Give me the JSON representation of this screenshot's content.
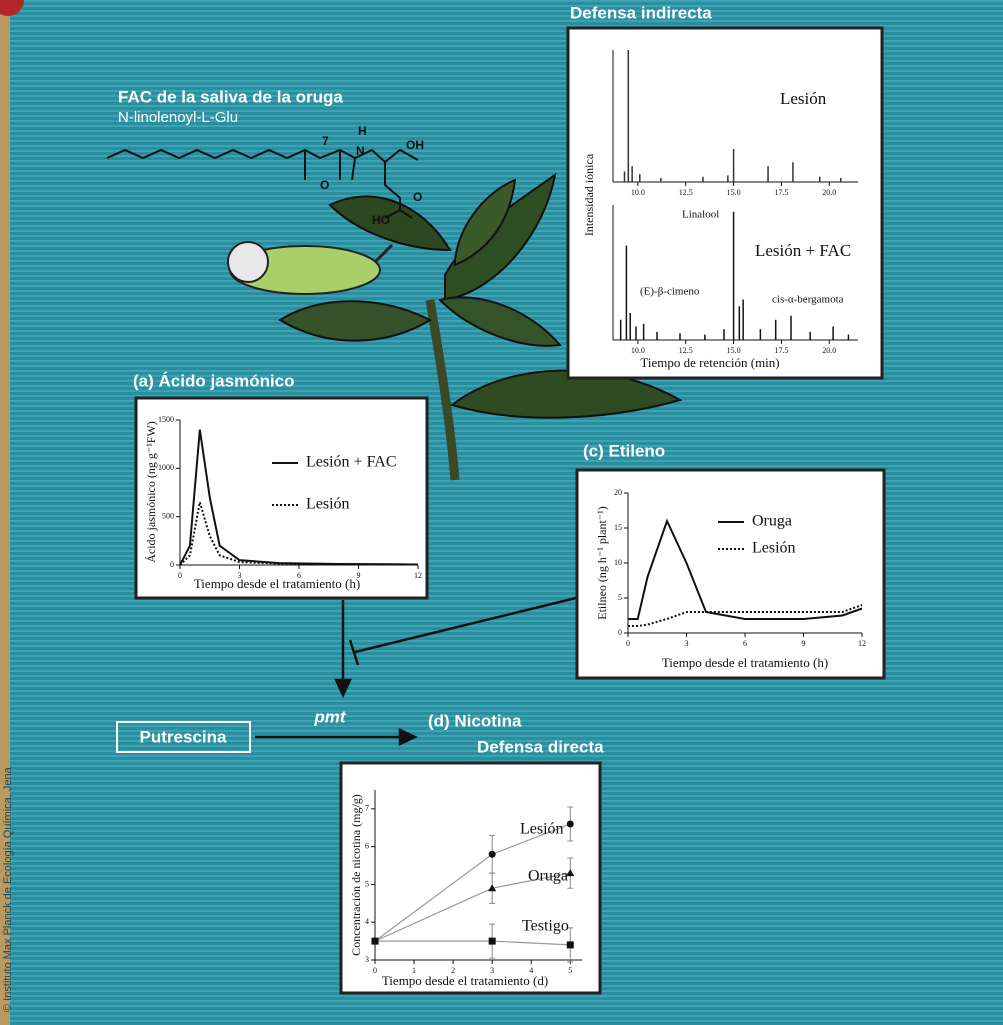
{
  "fac_title": "FAC de la saliva de la oruga",
  "fac_subtitle": "N-linolenoyl-L-Glu",
  "molecule_labels": [
    "7",
    "O",
    "H",
    "N",
    "OH",
    "HO",
    "O"
  ],
  "pathway": {
    "substrate": "Putrescina",
    "enzyme": "pmt"
  },
  "credit": "© Instituto Max Planck de Ecología Química, Jena",
  "chart_data": [
    {
      "type": "chromatogram",
      "title": "Defensa indirecta",
      "ylabel": "Intensidad iónica",
      "xlabel": "Tiempo de retención (min)",
      "xlim": [
        8.7,
        21.5
      ],
      "ylim": [
        0,
        100
      ],
      "xticks": [
        {
          "value": 10,
          "label": "10.0"
        },
        12.5,
        {
          "value": 15,
          "label": "15.0"
        },
        17.5,
        {
          "value": 20,
          "label": "20.0"
        }
      ],
      "series": [
        {
          "name": "Lesión",
          "color": "#333333",
          "x": [
            9.3,
            9.5,
            9.7,
            10.1,
            11.2,
            13.4,
            14.7,
            15.0,
            16.8,
            18.1,
            19.5,
            20.6
          ],
          "values": [
            8,
            100,
            12,
            6,
            3,
            4,
            5,
            25,
            12,
            15,
            4,
            3
          ]
        },
        {
          "name": "Lesión + FAC",
          "color": "#111111",
          "x": [
            9.1,
            9.4,
            9.6,
            9.9,
            10.3,
            11.0,
            12.2,
            13.5,
            14.5,
            15.0,
            15.3,
            15.5,
            16.4,
            17.2,
            18.0,
            19.0,
            20.2,
            21.0
          ],
          "values": [
            15,
            70,
            20,
            10,
            12,
            6,
            5,
            4,
            8,
            95,
            25,
            30,
            8,
            15,
            18,
            6,
            10,
            4
          ]
        }
      ],
      "annotations": [
        "Linalool",
        "(E)-β-cimeno",
        "cis-α-bergamota"
      ]
    },
    {
      "type": "line",
      "title": "(a) Ácido jasmónico",
      "ylabel": "Ácido jasmónico (ng g⁻¹FW)",
      "xlabel": "Tiempo desde el tratamiento (h)",
      "x": [
        0,
        0.5,
        1,
        1.5,
        2,
        3,
        5,
        8,
        12
      ],
      "xlim": [
        0,
        12
      ],
      "ylim": [
        0,
        1500
      ],
      "xticks": [
        0,
        3,
        6,
        9,
        12
      ],
      "yticks": [
        0,
        500,
        1000,
        1500
      ],
      "series": [
        {
          "name": "Lesión + FAC",
          "color": "#111111",
          "line_style": "solid",
          "values": [
            0,
            200,
            1400,
            700,
            200,
            50,
            20,
            10,
            5
          ]
        },
        {
          "name": "Lesión",
          "color": "#111111",
          "line_style": "dotted",
          "values": [
            0,
            100,
            650,
            300,
            100,
            30,
            15,
            10,
            5
          ]
        }
      ]
    },
    {
      "type": "line",
      "title": "(c) Etileno",
      "ylabel": "Etilneo (ng h⁻¹ plant⁻¹)",
      "xlabel": "Tiempo desde el tratamiento (h)",
      "x": [
        0,
        0.5,
        1,
        2,
        3,
        4,
        6,
        9,
        11,
        12
      ],
      "xlim": [
        0,
        12
      ],
      "ylim": [
        0,
        20
      ],
      "xticks": [
        0,
        3,
        6,
        9,
        12
      ],
      "yticks": [
        0,
        5,
        10,
        15,
        20
      ],
      "series": [
        {
          "name": "Oruga",
          "color": "#111111",
          "line_style": "solid",
          "values": [
            2,
            2,
            8,
            16,
            10,
            3,
            2,
            2,
            2.5,
            3.5
          ]
        },
        {
          "name": "Lesión",
          "color": "#111111",
          "line_style": "dotted",
          "values": [
            1,
            1,
            1.2,
            2,
            3,
            3,
            3,
            3,
            3,
            4
          ]
        }
      ]
    },
    {
      "type": "errorline",
      "title": "(d) Nicotina",
      "subtitle": "Defensa directa",
      "ylabel": "Concentración de nicotina (mg/g)",
      "xlabel": "Tiempo desde el tratamiento (d)",
      "x": [
        0,
        3,
        5
      ],
      "xlim": [
        0,
        5.3
      ],
      "ylim": [
        3,
        7.5
      ],
      "xticks": [
        0,
        1,
        2,
        3,
        4,
        5
      ],
      "yticks": [
        3,
        4,
        5,
        6,
        7
      ],
      "series": [
        {
          "name": "Lesión",
          "color": "#111111",
          "marker": "circle",
          "values": [
            3.5,
            5.8,
            6.6
          ],
          "errors": [
            0,
            0.5,
            0.45
          ]
        },
        {
          "name": "Oruga",
          "color": "#111111",
          "marker": "triangle",
          "values": [
            3.5,
            4.9,
            5.3
          ],
          "errors": [
            0,
            0.4,
            0.4
          ]
        },
        {
          "name": "Testigo",
          "color": "#111111",
          "marker": "square",
          "values": [
            3.5,
            3.5,
            3.4
          ],
          "errors": [
            0,
            0.45,
            0.45
          ]
        }
      ]
    }
  ]
}
